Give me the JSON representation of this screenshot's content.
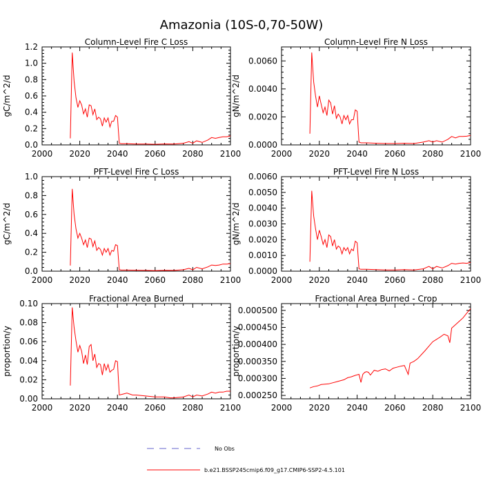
{
  "figure_title": "Amazonia (10S-0,70-50W)",
  "legend": {
    "obs_label": "No Obs",
    "obs_color": "#6666cc",
    "model_label": "b.e21.BSSP245cmip6.f09_g17.CMIP6-SSP2-4.5.101",
    "model_color": "#ff0000"
  },
  "chart_data": [
    {
      "type": "line",
      "title": "Column-Level Fire C Loss",
      "xlabel": "",
      "ylabel": "gC/m^2/d",
      "xlim": [
        2000,
        2100
      ],
      "ylim": [
        0,
        1.2
      ],
      "xticks": [
        2000,
        2020,
        2040,
        2060,
        2080,
        2100
      ],
      "xtick_labels": [
        "2000",
        "2020",
        "2040",
        "2060",
        "2080",
        "2100"
      ],
      "yticks": [
        0,
        0.2,
        0.4,
        0.6,
        0.8,
        1.0,
        1.2
      ],
      "ytick_labels": [
        "0.0",
        "0.2",
        "0.4",
        "0.6",
        "0.8",
        "1.0",
        "1.2"
      ],
      "grid": false,
      "series": [
        {
          "name": "b.e21.BSSP245cmip6.f09_g17.CMIP6-SSP2-4.5.101",
          "x": [
            2015,
            2016,
            2017,
            2018,
            2019,
            2020,
            2021,
            2022,
            2023,
            2024,
            2025,
            2026,
            2027,
            2028,
            2029,
            2030,
            2031,
            2032,
            2033,
            2034,
            2035,
            2036,
            2037,
            2038,
            2039,
            2040,
            2041,
            2042,
            2045,
            2050,
            2055,
            2060,
            2065,
            2070,
            2075,
            2078,
            2080,
            2082,
            2085,
            2088,
            2090,
            2092,
            2094,
            2096,
            2098,
            2100
          ],
          "y": [
            0.08,
            1.13,
            0.78,
            0.58,
            0.46,
            0.54,
            0.49,
            0.38,
            0.44,
            0.34,
            0.49,
            0.48,
            0.37,
            0.44,
            0.31,
            0.34,
            0.32,
            0.23,
            0.33,
            0.28,
            0.33,
            0.22,
            0.29,
            0.29,
            0.36,
            0.34,
            0.02,
            0.015,
            0.015,
            0.01,
            0.01,
            0.008,
            0.012,
            0.01,
            0.02,
            0.04,
            0.02,
            0.05,
            0.03,
            0.06,
            0.09,
            0.08,
            0.09,
            0.1,
            0.1,
            0.11
          ]
        }
      ]
    },
    {
      "type": "line",
      "title": "Column-Level Fire N Loss",
      "xlabel": "",
      "ylabel": "gN/m^2/d",
      "xlim": [
        2000,
        2100
      ],
      "ylim": [
        0,
        0.007
      ],
      "xticks": [
        2000,
        2020,
        2040,
        2060,
        2080,
        2100
      ],
      "xtick_labels": [
        "2000",
        "2020",
        "2040",
        "2060",
        "2080",
        "2100"
      ],
      "yticks": [
        0,
        0.002,
        0.004,
        0.006
      ],
      "ytick_labels": [
        "0.0000",
        "0.0020",
        "0.0040",
        "0.0060"
      ],
      "grid": false,
      "series": [
        {
          "name": "b.e21.BSSP245cmip6.f09_g17.CMIP6-SSP2-4.5.101",
          "x": [
            2015,
            2016,
            2017,
            2018,
            2019,
            2020,
            2021,
            2022,
            2023,
            2024,
            2025,
            2026,
            2027,
            2028,
            2029,
            2030,
            2031,
            2032,
            2033,
            2034,
            2035,
            2036,
            2037,
            2038,
            2039,
            2040,
            2041,
            2042,
            2045,
            2050,
            2055,
            2060,
            2065,
            2070,
            2075,
            2078,
            2080,
            2082,
            2085,
            2088,
            2090,
            2092,
            2094,
            2096,
            2098,
            2100
          ],
          "y": [
            0.0008,
            0.0066,
            0.0045,
            0.0035,
            0.0027,
            0.0035,
            0.0029,
            0.0023,
            0.0027,
            0.0021,
            0.0032,
            0.003,
            0.0022,
            0.0028,
            0.0019,
            0.0022,
            0.002,
            0.0015,
            0.0021,
            0.0018,
            0.0021,
            0.0015,
            0.0018,
            0.0018,
            0.0025,
            0.0024,
            0.0002,
            0.00015,
            0.00015,
            0.00012,
            0.0001,
            0.0001,
            0.00012,
            0.0001,
            0.0002,
            0.0003,
            0.0002,
            0.0003,
            0.0002,
            0.0004,
            0.0006,
            0.0005,
            0.0006,
            0.0006,
            0.00062,
            0.00068
          ]
        }
      ]
    },
    {
      "type": "line",
      "title": "PFT-Level Fire C Loss",
      "xlabel": "",
      "ylabel": "gC/m^2/d",
      "xlim": [
        2000,
        2100
      ],
      "ylim": [
        0,
        1.0
      ],
      "xticks": [
        2000,
        2020,
        2040,
        2060,
        2080,
        2100
      ],
      "xtick_labels": [
        "2000",
        "2020",
        "2040",
        "2060",
        "2080",
        "2100"
      ],
      "yticks": [
        0,
        0.2,
        0.4,
        0.6,
        0.8,
        1.0
      ],
      "ytick_labels": [
        "0.0",
        "0.2",
        "0.4",
        "0.6",
        "0.8",
        "1.0"
      ],
      "grid": false,
      "series": [
        {
          "name": "b.e21.BSSP245cmip6.f09_g17.CMIP6-SSP2-4.5.101",
          "x": [
            2015,
            2016,
            2017,
            2018,
            2019,
            2020,
            2021,
            2022,
            2023,
            2024,
            2025,
            2026,
            2027,
            2028,
            2029,
            2030,
            2031,
            2032,
            2033,
            2034,
            2035,
            2036,
            2037,
            2038,
            2039,
            2040,
            2041,
            2042,
            2045,
            2050,
            2055,
            2060,
            2065,
            2070,
            2075,
            2078,
            2080,
            2082,
            2085,
            2088,
            2090,
            2092,
            2094,
            2096,
            2098,
            2100
          ],
          "y": [
            0.06,
            0.87,
            0.6,
            0.45,
            0.35,
            0.4,
            0.35,
            0.28,
            0.33,
            0.25,
            0.35,
            0.34,
            0.26,
            0.32,
            0.22,
            0.25,
            0.23,
            0.17,
            0.24,
            0.2,
            0.24,
            0.17,
            0.22,
            0.21,
            0.28,
            0.27,
            0.015,
            0.012,
            0.012,
            0.01,
            0.008,
            0.006,
            0.009,
            0.008,
            0.015,
            0.03,
            0.015,
            0.04,
            0.025,
            0.045,
            0.065,
            0.06,
            0.065,
            0.075,
            0.075,
            0.08
          ]
        }
      ]
    },
    {
      "type": "line",
      "title": "PFT-Level Fire N Loss",
      "xlabel": "",
      "ylabel": "gN/m^2/d",
      "xlim": [
        2000,
        2100
      ],
      "ylim": [
        0,
        0.006
      ],
      "xticks": [
        2000,
        2020,
        2040,
        2060,
        2080,
        2100
      ],
      "xtick_labels": [
        "2000",
        "2020",
        "2040",
        "2060",
        "2080",
        "2100"
      ],
      "yticks": [
        0,
        0.001,
        0.002,
        0.003,
        0.004,
        0.005,
        0.006
      ],
      "ytick_labels": [
        "0.0000",
        "0.0010",
        "0.0020",
        "0.0030",
        "0.0040",
        "0.0050",
        "0.0060"
      ],
      "grid": false,
      "series": [
        {
          "name": "b.e21.BSSP245cmip6.f09_g17.CMIP6-SSP2-4.5.101",
          "x": [
            2015,
            2016,
            2017,
            2018,
            2019,
            2020,
            2021,
            2022,
            2023,
            2024,
            2025,
            2026,
            2027,
            2028,
            2029,
            2030,
            2031,
            2032,
            2033,
            2034,
            2035,
            2036,
            2037,
            2038,
            2039,
            2040,
            2041,
            2042,
            2045,
            2050,
            2055,
            2060,
            2065,
            2070,
            2075,
            2078,
            2080,
            2082,
            2085,
            2088,
            2090,
            2092,
            2094,
            2096,
            2098,
            2100
          ],
          "y": [
            0.0006,
            0.0051,
            0.0035,
            0.0027,
            0.002,
            0.0026,
            0.0022,
            0.0017,
            0.002,
            0.0015,
            0.0023,
            0.0022,
            0.0016,
            0.002,
            0.0014,
            0.0016,
            0.0015,
            0.0011,
            0.0015,
            0.0013,
            0.0015,
            0.0011,
            0.0014,
            0.0013,
            0.0019,
            0.0018,
            0.00015,
            0.00012,
            0.00012,
            0.0001,
            8e-05,
            8e-05,
            0.0001,
            8e-05,
            0.00015,
            0.0003,
            0.00015,
            0.0003,
            0.0002,
            0.00035,
            0.0005,
            0.00045,
            0.0005,
            0.00052,
            0.0005,
            0.00055
          ]
        }
      ]
    },
    {
      "type": "line",
      "title": "Fractional Area Burned",
      "xlabel": "",
      "ylabel": "proportion/y",
      "xlim": [
        2000,
        2100
      ],
      "ylim": [
        0,
        0.1
      ],
      "xticks": [
        2000,
        2020,
        2040,
        2060,
        2080,
        2100
      ],
      "xtick_labels": [
        "2000",
        "2020",
        "2040",
        "2060",
        "2080",
        "2100"
      ],
      "yticks": [
        0,
        0.02,
        0.04,
        0.06,
        0.08,
        0.1
      ],
      "ytick_labels": [
        "0.00",
        "0.02",
        "0.04",
        "0.06",
        "0.08",
        "0.10"
      ],
      "grid": false,
      "series": [
        {
          "name": "b.e21.BSSP245cmip6.f09_g17.CMIP6-SSP2-4.5.101",
          "x": [
            2015,
            2016,
            2017,
            2018,
            2019,
            2020,
            2021,
            2022,
            2023,
            2024,
            2025,
            2026,
            2027,
            2028,
            2029,
            2030,
            2031,
            2032,
            2033,
            2034,
            2035,
            2036,
            2037,
            2038,
            2039,
            2040,
            2041,
            2043,
            2045,
            2048,
            2050,
            2055,
            2060,
            2065,
            2068,
            2070,
            2075,
            2078,
            2080,
            2082,
            2085,
            2088,
            2090,
            2092,
            2094,
            2096,
            2098,
            2100
          ],
          "y": [
            0.014,
            0.096,
            0.075,
            0.061,
            0.049,
            0.056,
            0.05,
            0.037,
            0.046,
            0.036,
            0.055,
            0.057,
            0.04,
            0.047,
            0.033,
            0.037,
            0.036,
            0.025,
            0.037,
            0.03,
            0.036,
            0.028,
            0.03,
            0.031,
            0.04,
            0.039,
            0.004,
            0.005,
            0.006,
            0.004,
            0.004,
            0.003,
            0.002,
            0.002,
            0.001,
            0.001,
            0.002,
            0.004,
            0.002,
            0.004,
            0.003,
            0.005,
            0.007,
            0.006,
            0.007,
            0.007,
            0.008,
            0.008
          ]
        }
      ]
    },
    {
      "type": "line",
      "title": "Fractional Area Burned - Crop",
      "xlabel": "",
      "ylabel": "proportion/y",
      "xlim": [
        2000,
        2100
      ],
      "ylim": [
        0.00024,
        0.00052
      ],
      "xticks": [
        2000,
        2020,
        2040,
        2060,
        2080,
        2100
      ],
      "xtick_labels": [
        "2000",
        "2020",
        "2040",
        "2060",
        "2080",
        "2100"
      ],
      "yticks": [
        0.00025,
        0.0003,
        0.00035,
        0.0004,
        0.00045,
        0.0005
      ],
      "ytick_labels": [
        "0.000250",
        "0.000300",
        "0.000350",
        "0.000400",
        "0.000450",
        "0.000500"
      ],
      "grid": false,
      "series": [
        {
          "name": "b.e21.BSSP245cmip6.f09_g17.CMIP6-SSP2-4.5.101",
          "x": [
            2015,
            2017,
            2019,
            2021,
            2023,
            2025,
            2027,
            2029,
            2031,
            2033,
            2035,
            2037,
            2039,
            2041,
            2042,
            2043,
            2044,
            2045,
            2046,
            2047,
            2049,
            2051,
            2053,
            2055,
            2057,
            2059,
            2061,
            2063,
            2065,
            2066,
            2067,
            2068,
            2070,
            2072,
            2074,
            2076,
            2078,
            2080,
            2082,
            2084,
            2086,
            2088,
            2089,
            2090,
            2092,
            2094,
            2096,
            2098,
            2100
          ],
          "y": [
            0.000272,
            0.000276,
            0.000278,
            0.000282,
            0.000283,
            0.000284,
            0.000287,
            0.00029,
            0.000293,
            0.000296,
            0.000302,
            0.000305,
            0.000309,
            0.000312,
            0.000288,
            0.000312,
            0.000318,
            0.00032,
            0.000318,
            0.00031,
            0.000324,
            0.000321,
            0.000326,
            0.000328,
            0.000322,
            0.00033,
            0.000333,
            0.000336,
            0.000338,
            0.000325,
            0.000312,
            0.000345,
            0.00035,
            0.000358,
            0.00037,
            0.000382,
            0.000395,
            0.000408,
            0.000415,
            0.000422,
            0.00043,
            0.000425,
            0.000405,
            0.000448,
            0.000458,
            0.000468,
            0.000478,
            0.000492,
            0.000505
          ]
        }
      ]
    }
  ]
}
